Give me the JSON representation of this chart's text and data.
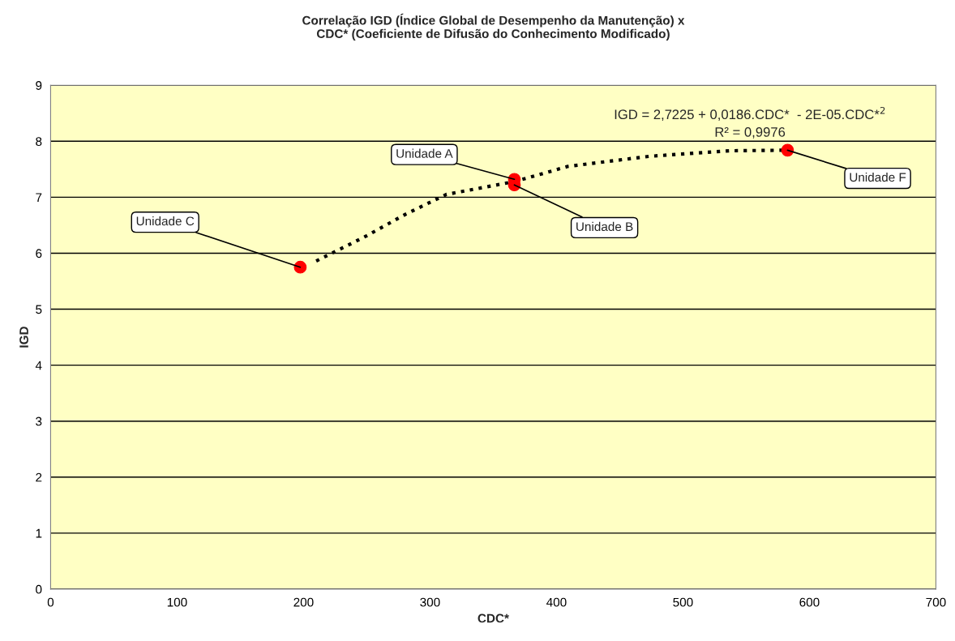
{
  "chart_data": {
    "type": "scatter",
    "title": "Correlação IGD (Índice Global de Desempenho da Manutenção) x\nCDC* (Coeficiente de Difusão do Conhecimento Modificado)",
    "xlabel": "CDC*",
    "ylabel": "IGD",
    "series": [
      {
        "color": "#ff0000",
        "marker": "circle",
        "x": [
          197.4,
          366.7,
          366.7,
          582.7
        ],
        "values": [
          5.75,
          7.32,
          7.22,
          7.84
        ]
      },
      {
        "type": "line",
        "color": "#000000",
        "line_style": "dotted",
        "marker": "none",
        "x": [
          210,
          249,
          281,
          313,
          367,
          409,
          473,
          537,
          583
        ],
        "values": [
          5.86,
          6.3,
          6.7,
          7.05,
          7.28,
          7.55,
          7.73,
          7.83,
          7.84
        ]
      }
    ],
    "annotations": [
      {
        "text": "Unidade C",
        "x": 197.4,
        "y": 5.75
      },
      {
        "text": "Unidade A",
        "x": 366.7,
        "y": 7.32
      },
      {
        "text": "Unidade B",
        "x": 366.7,
        "y": 7.22
      },
      {
        "text": "Unidade F",
        "x": 582.7,
        "y": 7.84
      },
      "IGD = 2,7225 + 0,0186.CDC*  - 2E-05.CDC*$^{2}$\nR² = 0,9976"
    ],
    "xlim": [
      0,
      700
    ],
    "xticks": [
      0,
      100,
      200,
      300,
      400,
      500,
      600,
      700
    ],
    "ylim": [
      0,
      9
    ],
    "yticks": [
      0,
      1,
      2,
      3,
      4,
      5,
      6,
      7,
      8,
      9
    ],
    "grid": "y",
    "legend": false
  }
}
